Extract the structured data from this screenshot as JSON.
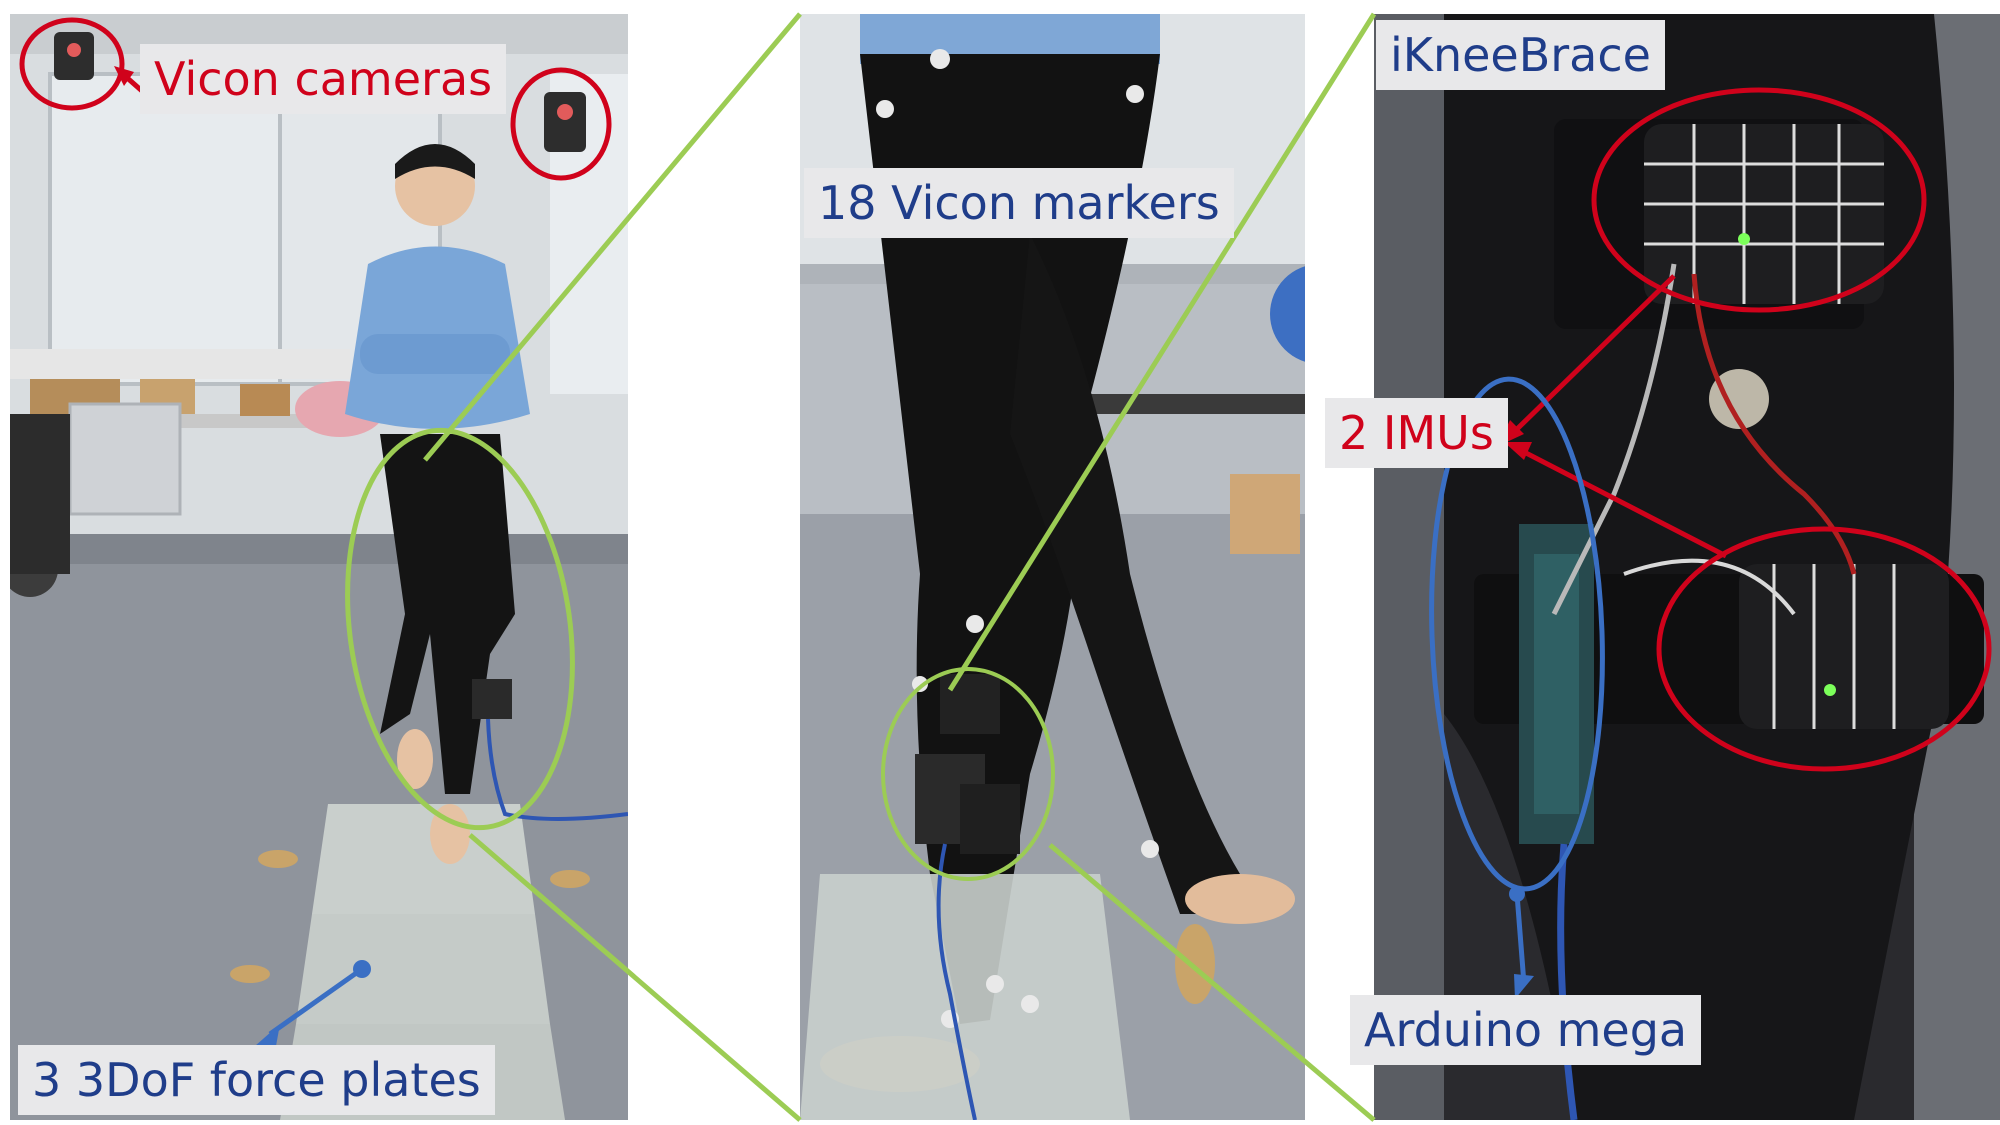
{
  "figure": {
    "labels": {
      "vicon_cameras": "Vicon cameras",
      "force_plates": "3 3DoF force plates",
      "vicon_markers": "18 Vicon markers",
      "ikneebrace": "iKneeBrace",
      "imus": "2 IMUs",
      "arduino": "Arduino mega"
    },
    "colors": {
      "callout_red": "#d0021b",
      "callout_blue": "#3a6fc4",
      "zoom_green": "#9ccc54",
      "label_text_blue": "#1f3d8a",
      "label_bg": "#e8e8ea"
    }
  }
}
